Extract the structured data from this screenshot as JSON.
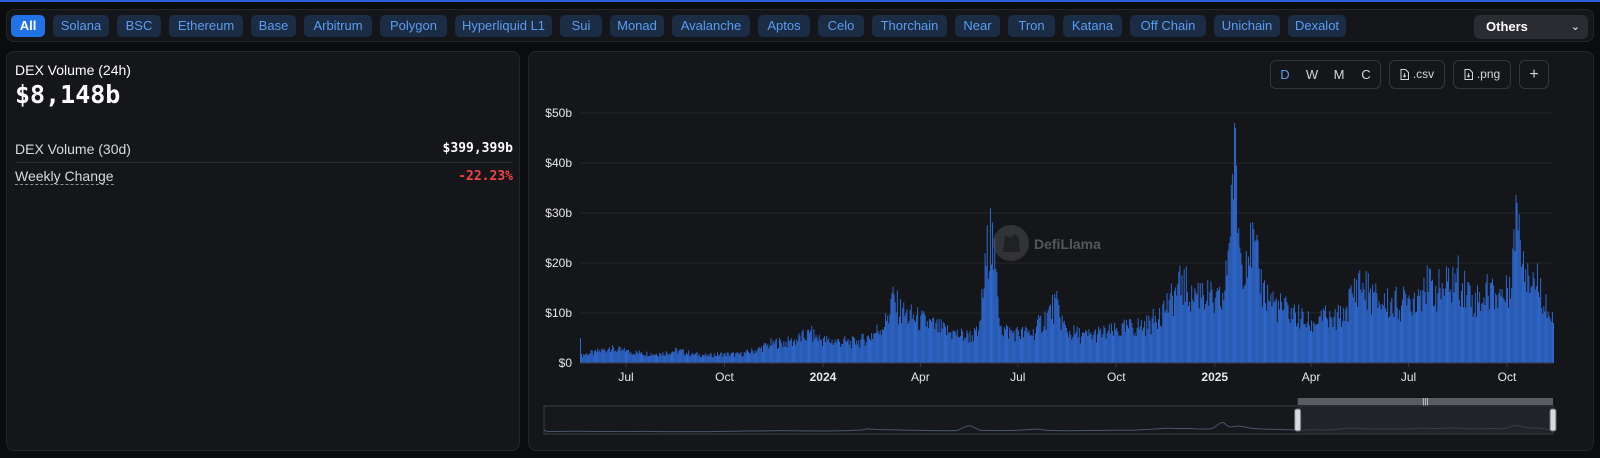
{
  "chains": [
    "All",
    "Solana",
    "BSC",
    "Ethereum",
    "Base",
    "Arbitrum",
    "Polygon",
    "Hyperliquid L1",
    "Sui",
    "Monad",
    "Avalanche",
    "Aptos",
    "Celo",
    "Thorchain",
    "Near",
    "Tron",
    "Katana",
    "Off Chain",
    "Unichain",
    "Dexalot"
  ],
  "selected_chain": "All",
  "others_label": "Others",
  "stats": {
    "title": "DEX Volume (24h)",
    "value": "$8,148b",
    "rows": [
      {
        "label": "DEX Volume (30d)",
        "value": "$399,399b"
      },
      {
        "label": "Weekly Change",
        "value": "-22.23%"
      }
    ]
  },
  "toolbar": {
    "granularity": [
      "D",
      "W",
      "M",
      "C"
    ],
    "selected_granularity": "D",
    "csv_label": ".csv",
    "png_label": ".png",
    "add_label": "+"
  },
  "watermark": "DefiLlama",
  "colors": {
    "bar": "#2f6bd4",
    "accent": "#2172e5",
    "negative": "#ef4444",
    "link": "#5b9cf0"
  },
  "chart_data": {
    "type": "bar",
    "title": "",
    "xlabel": "",
    "ylabel": "",
    "grid": true,
    "legend": "none",
    "ylim": [
      0,
      50
    ],
    "y_unit": "$b",
    "yticks": [
      "$0",
      "$10b",
      "$20b",
      "$30b",
      "$40b",
      "$50b"
    ],
    "xticks": [
      "Jul",
      "Oct",
      "2024",
      "Apr",
      "Jul",
      "Oct",
      "2025",
      "Apr",
      "Jul",
      "Oct"
    ],
    "x_range": [
      "2023-05-19",
      "2025-11-13"
    ],
    "series": [
      {
        "values_note_period": "daily volume, sampled ~weekly",
        "points": [
          [
            "2023-05-20",
            1.8
          ],
          [
            "2023-06-01",
            2.4
          ],
          [
            "2023-06-15",
            3.2
          ],
          [
            "2023-07-01",
            2.6
          ],
          [
            "2023-07-15",
            2.2
          ],
          [
            "2023-08-01",
            2.0
          ],
          [
            "2023-08-17",
            2.8
          ],
          [
            "2023-09-01",
            2.0
          ],
          [
            "2023-09-15",
            1.7
          ],
          [
            "2023-10-01",
            2.0
          ],
          [
            "2023-10-15",
            1.9
          ],
          [
            "2023-11-01",
            3.0
          ],
          [
            "2023-11-15",
            4.5
          ],
          [
            "2023-12-01",
            4.6
          ],
          [
            "2023-12-10",
            5.5
          ],
          [
            "2023-12-20",
            6.5
          ],
          [
            "2024-01-01",
            5.0
          ],
          [
            "2024-01-15",
            4.8
          ],
          [
            "2024-02-01",
            4.5
          ],
          [
            "2024-02-15",
            6.0
          ],
          [
            "2024-03-01",
            9.5
          ],
          [
            "2024-03-05",
            14.0
          ],
          [
            "2024-03-15",
            11.0
          ],
          [
            "2024-04-01",
            9.5
          ],
          [
            "2024-04-15",
            8.0
          ],
          [
            "2024-05-01",
            6.5
          ],
          [
            "2024-05-15",
            6.0
          ],
          [
            "2024-05-25",
            6.5
          ],
          [
            "2024-06-05",
            31.0
          ],
          [
            "2024-06-15",
            7.5
          ],
          [
            "2024-07-01",
            6.5
          ],
          [
            "2024-07-15",
            6.8
          ],
          [
            "2024-08-05",
            13.0
          ],
          [
            "2024-08-15",
            7.0
          ],
          [
            "2024-09-01",
            6.0
          ],
          [
            "2024-09-15",
            6.5
          ],
          [
            "2024-10-01",
            7.0
          ],
          [
            "2024-10-15",
            8.0
          ],
          [
            "2024-11-01",
            8.5
          ],
          [
            "2024-11-10",
            11.0
          ],
          [
            "2024-11-20",
            14.0
          ],
          [
            "2024-12-01",
            17.5
          ],
          [
            "2024-12-10",
            15.5
          ],
          [
            "2024-12-20",
            16.0
          ],
          [
            "2025-01-01",
            13.0
          ],
          [
            "2025-01-10",
            14.5
          ],
          [
            "2025-01-19",
            48.0
          ],
          [
            "2025-01-25",
            22.0
          ],
          [
            "2025-02-03",
            28.0
          ],
          [
            "2025-02-15",
            16.0
          ],
          [
            "2025-03-01",
            12.5
          ],
          [
            "2025-03-15",
            11.0
          ],
          [
            "2025-04-01",
            8.5
          ],
          [
            "2025-04-10",
            10.5
          ],
          [
            "2025-04-20",
            9.0
          ],
          [
            "2025-05-01",
            11.0
          ],
          [
            "2025-05-15",
            18.0
          ],
          [
            "2025-06-01",
            14.0
          ],
          [
            "2025-06-15",
            13.0
          ],
          [
            "2025-07-01",
            13.5
          ],
          [
            "2025-07-15",
            17.0
          ],
          [
            "2025-08-01",
            16.0
          ],
          [
            "2025-08-15",
            19.0
          ],
          [
            "2025-09-01",
            14.0
          ],
          [
            "2025-09-15",
            16.0
          ],
          [
            "2025-10-01",
            15.0
          ],
          [
            "2025-10-10",
            32.0
          ],
          [
            "2025-10-20",
            20.0
          ],
          [
            "2025-11-01",
            17.0
          ],
          [
            "2025-11-13",
            8.0
          ]
        ]
      }
    ],
    "brush": {
      "start": "2025-03-28",
      "end": "2025-11-13"
    }
  }
}
